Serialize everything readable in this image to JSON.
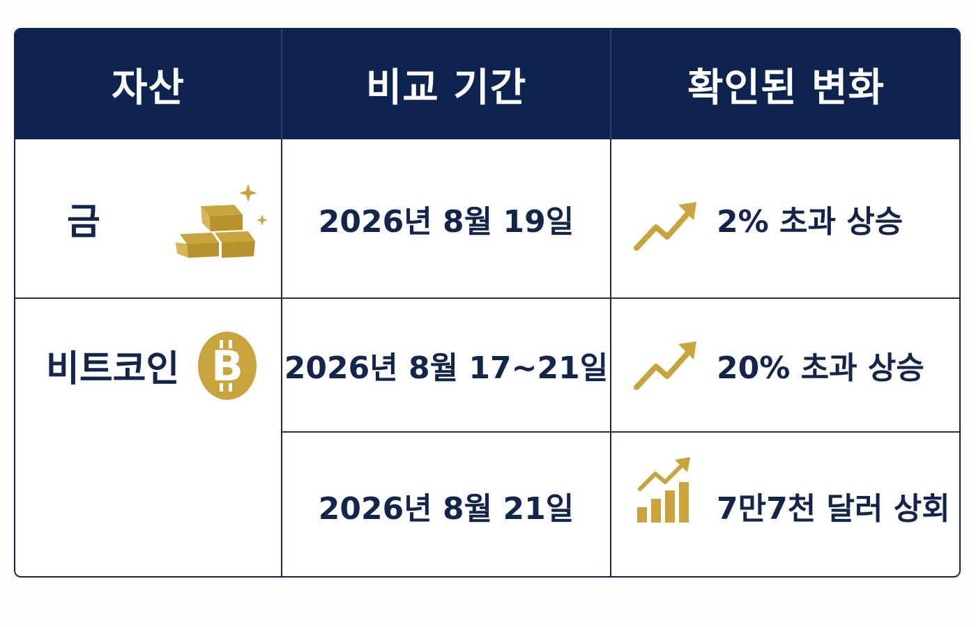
{
  "header": {
    "asset": "자산",
    "period": "비교 기간",
    "change": "확인된 변화"
  },
  "rows": [
    {
      "asset": "금",
      "asset_icon": "gold-bars-icon",
      "period": "2026년 8월 19일",
      "change": "2% 초과 상승",
      "change_icon": "trend-up-arrow-icon"
    },
    {
      "asset": "비트코인",
      "asset_icon": "bitcoin-icon",
      "period": "2026년 8월 17~21일",
      "change": "20% 초과 상승",
      "change_icon": "trend-up-arrow-icon"
    },
    {
      "asset": "",
      "period": "2026년 8월 21일",
      "change": "7만7천 달러 상회",
      "change_icon": "bar-chart-up-icon"
    }
  ],
  "colors": {
    "header_bg": "#0d2350",
    "text": "#13254a",
    "accent_gold": "#c9a43c",
    "border": "#12264d"
  }
}
